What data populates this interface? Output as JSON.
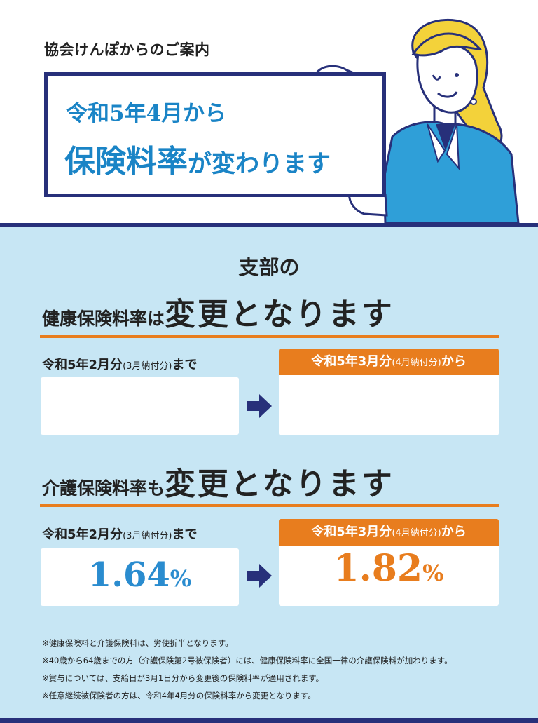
{
  "header": {
    "org_line": "協会けんぽからのご案内",
    "sign_line1": "令和5年4月から",
    "sign_line2_main": "保険料率",
    "sign_line2_tail": "が変わります"
  },
  "branch_label": "支部の",
  "health": {
    "headline_lead": "健康保険料率は",
    "headline_big": "変更となります",
    "before_label": "令和5年2月分",
    "before_paren": "(3月納付分)",
    "before_suffix": "まで",
    "after_label": "令和5年3月分",
    "after_paren": "(4月納付分)",
    "after_suffix": "から",
    "before_rate": "",
    "after_rate": ""
  },
  "care": {
    "headline_lead": "介護保険料率も",
    "headline_big": "変更となります",
    "before_label": "令和5年2月分",
    "before_paren": "(3月納付分)",
    "before_suffix": "まで",
    "after_label": "令和5年3月分",
    "after_paren": "(4月納付分)",
    "after_suffix": "から",
    "before_rate": "1.64",
    "after_rate": "1.82",
    "percent": "%"
  },
  "notes": [
    "※健康保険料と介護保険料は、労使折半となります。",
    "※40歳から64歳までの方（介護保険第2号被保険者）には、健康保険料率に全国一律の介護保険料が加わります。",
    "※賞与については、支給日が3月1日分から変更後の保険料率が適用されます。",
    "※任意継続被保険者の方は、令和4年4月分の保険料率から変更となります。"
  ],
  "colors": {
    "navy": "#27307a",
    "band": "#c7e6f4",
    "accent_orange": "#e87d1e",
    "accent_blue": "#2a8ccf"
  },
  "icons": [
    "woman-holding-sign-illustration",
    "right-arrow-icon"
  ]
}
